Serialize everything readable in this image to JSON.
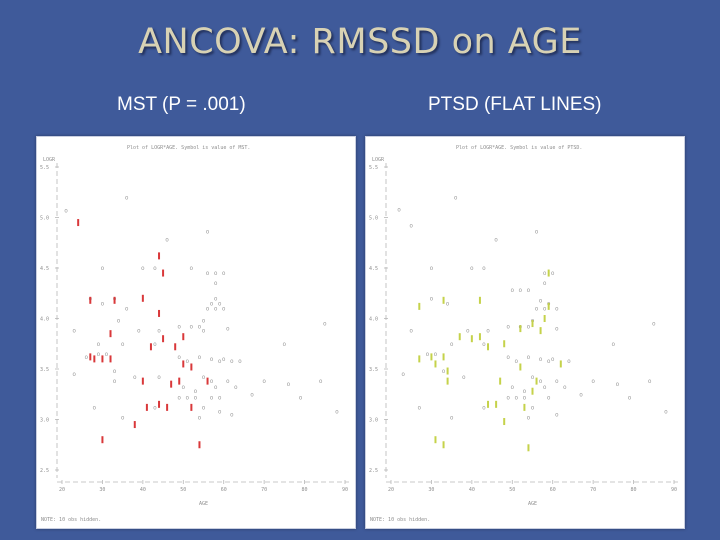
{
  "slide": {
    "title": "ANCOVA: RMSSD on AGE",
    "left_subtitle": "MST (P = .001)",
    "right_subtitle": "PTSD (FLAT LINES)"
  },
  "colors": {
    "background": "#3f5a9a",
    "title": "#d8d2b4",
    "grp0": "#9c9c9c",
    "grp1_mst": "#d9383a",
    "grp1_ptsd": "#c5d24a"
  },
  "chart_data": [
    {
      "type": "scatter",
      "title": "Plot of LOGR*AGE.  Symbol is value of MST.",
      "ylabel": "LOGR",
      "xlabel": "AGE",
      "note": "NOTE:  10 obs hidden.",
      "xlim": [
        20,
        90
      ],
      "ylim": [
        2.5,
        5.5
      ],
      "xticks": [
        20,
        30,
        40,
        50,
        60,
        70,
        80,
        90
      ],
      "yticks": [
        2.5,
        3.0,
        3.5,
        4.0,
        4.5,
        5.0,
        5.5
      ],
      "grid": false,
      "series": [
        {
          "name": "0",
          "points": [
            [
              36,
              5.2
            ],
            [
              21,
              5.07
            ],
            [
              46,
              4.78
            ],
            [
              56,
              4.86
            ],
            [
              30,
              4.5
            ],
            [
              40,
              4.5
            ],
            [
              43,
              4.5
            ],
            [
              52,
              4.5
            ],
            [
              56,
              4.45
            ],
            [
              58,
              4.45
            ],
            [
              60,
              4.45
            ],
            [
              58,
              4.35
            ],
            [
              58,
              4.2
            ],
            [
              57,
              4.15
            ],
            [
              59,
              4.15
            ],
            [
              56,
              4.1
            ],
            [
              58,
              4.1
            ],
            [
              60,
              4.1
            ],
            [
              55,
              3.98
            ],
            [
              49,
              3.92
            ],
            [
              52,
              3.92
            ],
            [
              54,
              3.92
            ],
            [
              27,
              4.2
            ],
            [
              30,
              4.15
            ],
            [
              33,
              4.2
            ],
            [
              36,
              4.1
            ],
            [
              34,
              3.98
            ],
            [
              23,
              3.88
            ],
            [
              39,
              3.88
            ],
            [
              44,
              3.88
            ],
            [
              55,
              3.88
            ],
            [
              61,
              3.9
            ],
            [
              29,
              3.75
            ],
            [
              35,
              3.75
            ],
            [
              43,
              3.75
            ],
            [
              29,
              3.65
            ],
            [
              31,
              3.65
            ],
            [
              26,
              3.62
            ],
            [
              49,
              3.62
            ],
            [
              54,
              3.62
            ],
            [
              57,
              3.6
            ],
            [
              60,
              3.6
            ],
            [
              51,
              3.58
            ],
            [
              59,
              3.58
            ],
            [
              62,
              3.58
            ],
            [
              64,
              3.58
            ],
            [
              23,
              3.45
            ],
            [
              33,
              3.48
            ],
            [
              33,
              3.38
            ],
            [
              38,
              3.42
            ],
            [
              44,
              3.42
            ],
            [
              55,
              3.42
            ],
            [
              57,
              3.38
            ],
            [
              61,
              3.38
            ],
            [
              50,
              3.32
            ],
            [
              58,
              3.32
            ],
            [
              53,
              3.28
            ],
            [
              49,
              3.22
            ],
            [
              51,
              3.22
            ],
            [
              53,
              3.22
            ],
            [
              57,
              3.22
            ],
            [
              59,
              3.22
            ],
            [
              28,
              3.12
            ],
            [
              43,
              3.12
            ],
            [
              55,
              3.12
            ],
            [
              59,
              3.08
            ],
            [
              62,
              3.05
            ],
            [
              63,
              3.32
            ],
            [
              67,
              3.25
            ],
            [
              70,
              3.38
            ],
            [
              75,
              3.75
            ],
            [
              85,
              3.95
            ],
            [
              76,
              3.35
            ],
            [
              79,
              3.22
            ],
            [
              84,
              3.38
            ],
            [
              88,
              3.08
            ],
            [
              35,
              3.02
            ],
            [
              54,
              3.02
            ]
          ]
        },
        {
          "name": "1",
          "points": [
            [
              24,
              4.95
            ],
            [
              44,
              4.62
            ],
            [
              45,
              4.45
            ],
            [
              27,
              4.18
            ],
            [
              33,
              4.18
            ],
            [
              40,
              4.2
            ],
            [
              44,
              4.05
            ],
            [
              32,
              3.85
            ],
            [
              45,
              3.8
            ],
            [
              50,
              3.82
            ],
            [
              42,
              3.72
            ],
            [
              48,
              3.72
            ],
            [
              27,
              3.62
            ],
            [
              28,
              3.6
            ],
            [
              30,
              3.6
            ],
            [
              32,
              3.6
            ],
            [
              50,
              3.55
            ],
            [
              52,
              3.52
            ],
            [
              40,
              3.38
            ],
            [
              47,
              3.35
            ],
            [
              49,
              3.38
            ],
            [
              56,
              3.38
            ],
            [
              44,
              3.15
            ],
            [
              41,
              3.12
            ],
            [
              46,
              3.12
            ],
            [
              52,
              3.12
            ],
            [
              38,
              2.95
            ],
            [
              30,
              2.8
            ],
            [
              54,
              2.75
            ]
          ]
        }
      ]
    },
    {
      "type": "scatter",
      "title": "Plot of LOGR*AGE.  Symbol is value of PTSD.",
      "ylabel": "LOGR",
      "xlabel": "AGE",
      "note": "NOTE:  10 obs hidden.",
      "xlim": [
        20,
        90
      ],
      "ylim": [
        2.5,
        5.5
      ],
      "xticks": [
        20,
        30,
        40,
        50,
        60,
        70,
        80,
        90
      ],
      "yticks": [
        2.5,
        3.0,
        3.5,
        4.0,
        4.5,
        5.0,
        5.5
      ],
      "grid": false,
      "series": [
        {
          "name": "0",
          "points": [
            [
              36,
              5.2
            ],
            [
              22,
              5.08
            ],
            [
              25,
              4.92
            ],
            [
              46,
              4.78
            ],
            [
              56,
              4.86
            ],
            [
              30,
              4.5
            ],
            [
              40,
              4.5
            ],
            [
              43,
              4.5
            ],
            [
              58,
              4.45
            ],
            [
              60,
              4.45
            ],
            [
              58,
              4.35
            ],
            [
              50,
              4.28
            ],
            [
              52,
              4.28
            ],
            [
              54,
              4.28
            ],
            [
              57,
              4.18
            ],
            [
              59,
              4.15
            ],
            [
              30,
              4.2
            ],
            [
              34,
              4.15
            ],
            [
              56,
              4.1
            ],
            [
              58,
              4.1
            ],
            [
              61,
              4.1
            ],
            [
              55,
              3.98
            ],
            [
              49,
              3.92
            ],
            [
              52,
              3.92
            ],
            [
              54,
              3.92
            ],
            [
              25,
              3.88
            ],
            [
              39,
              3.88
            ],
            [
              44,
              3.88
            ],
            [
              61,
              3.9
            ],
            [
              35,
              3.75
            ],
            [
              43,
              3.75
            ],
            [
              29,
              3.65
            ],
            [
              31,
              3.65
            ],
            [
              49,
              3.62
            ],
            [
              54,
              3.62
            ],
            [
              57,
              3.6
            ],
            [
              60,
              3.6
            ],
            [
              51,
              3.58
            ],
            [
              59,
              3.58
            ],
            [
              64,
              3.58
            ],
            [
              23,
              3.45
            ],
            [
              33,
              3.48
            ],
            [
              38,
              3.42
            ],
            [
              55,
              3.42
            ],
            [
              57,
              3.38
            ],
            [
              61,
              3.38
            ],
            [
              50,
              3.32
            ],
            [
              58,
              3.32
            ],
            [
              53,
              3.28
            ],
            [
              49,
              3.22
            ],
            [
              51,
              3.22
            ],
            [
              53,
              3.22
            ],
            [
              59,
              3.22
            ],
            [
              27,
              3.12
            ],
            [
              43,
              3.12
            ],
            [
              55,
              3.12
            ],
            [
              61,
              3.05
            ],
            [
              63,
              3.32
            ],
            [
              67,
              3.25
            ],
            [
              70,
              3.38
            ],
            [
              75,
              3.75
            ],
            [
              85,
              3.95
            ],
            [
              76,
              3.35
            ],
            [
              79,
              3.22
            ],
            [
              84,
              3.38
            ],
            [
              88,
              3.08
            ],
            [
              35,
              3.02
            ],
            [
              54,
              3.02
            ]
          ]
        },
        {
          "name": "1",
          "points": [
            [
              59,
              4.45
            ],
            [
              27,
              4.12
            ],
            [
              33,
              4.18
            ],
            [
              42,
              4.18
            ],
            [
              59,
              4.12
            ],
            [
              55,
              3.95
            ],
            [
              58,
              4.0
            ],
            [
              37,
              3.82
            ],
            [
              42,
              3.82
            ],
            [
              52,
              3.9
            ],
            [
              57,
              3.88
            ],
            [
              44,
              3.72
            ],
            [
              48,
              3.75
            ],
            [
              40,
              3.8
            ],
            [
              27,
              3.6
            ],
            [
              30,
              3.62
            ],
            [
              33,
              3.62
            ],
            [
              31,
              3.55
            ],
            [
              34,
              3.48
            ],
            [
              52,
              3.52
            ],
            [
              62,
              3.55
            ],
            [
              34,
              3.38
            ],
            [
              47,
              3.38
            ],
            [
              56,
              3.38
            ],
            [
              55,
              3.28
            ],
            [
              44,
              3.15
            ],
            [
              46,
              3.15
            ],
            [
              53,
              3.12
            ],
            [
              48,
              2.98
            ],
            [
              31,
              2.8
            ],
            [
              33,
              2.75
            ],
            [
              54,
              2.72
            ]
          ]
        }
      ]
    }
  ]
}
